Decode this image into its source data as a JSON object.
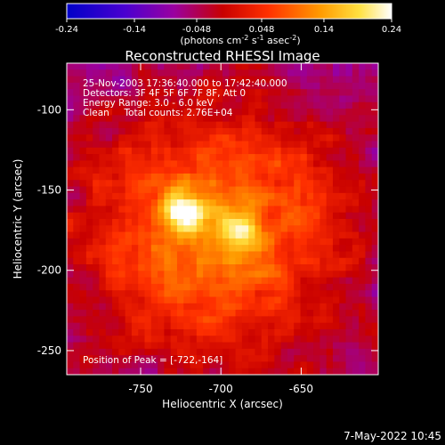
{
  "colorbar": {
    "ticks": [
      "-0.24",
      "-0.14",
      "-0.048",
      "0.048",
      "0.14",
      "0.24"
    ],
    "unit_prefix": "(photons cm",
    "unit_exp1": "-2",
    "unit_mid1": " s",
    "unit_exp2": "-1",
    "unit_mid2": " asec",
    "unit_exp3": "-2",
    "unit_suffix": ")"
  },
  "chart_data": {
    "type": "heatmap",
    "title": "Reconstructed RHESSI Image",
    "xlabel": "Heliocentric X (arcsec)",
    "ylabel": "Heliocentric Y (arcsec)",
    "xlim": [
      -796,
      -602
    ],
    "ylim": [
      -265,
      -71
    ],
    "x_ticks": [
      "-750",
      "-700",
      "-650"
    ],
    "y_ticks": [
      "-100",
      "-150",
      "-200",
      "-250"
    ],
    "color_range": [
      -0.24,
      0.24
    ],
    "colormap": "RHESSI blue-purple-red-yellow-white",
    "sources": [
      {
        "x": -722,
        "y": -164,
        "peak": 0.24
      },
      {
        "x": -688,
        "y": -176,
        "peak": 0.21
      }
    ],
    "info_lines": [
      "25-Nov-2003 17:36:40.000 to 17:42:40.000",
      "Detectors: 3F 4F 5F 6F 7F 8F, Att 0",
      "Energy Range: 3.0 - 6.0 keV",
      "Clean     Total counts: 2.76E+04"
    ],
    "peak_label": "Position of Peak = [-722,-164]"
  },
  "footer": {
    "timestamp": "7-May-2022 10:45"
  }
}
